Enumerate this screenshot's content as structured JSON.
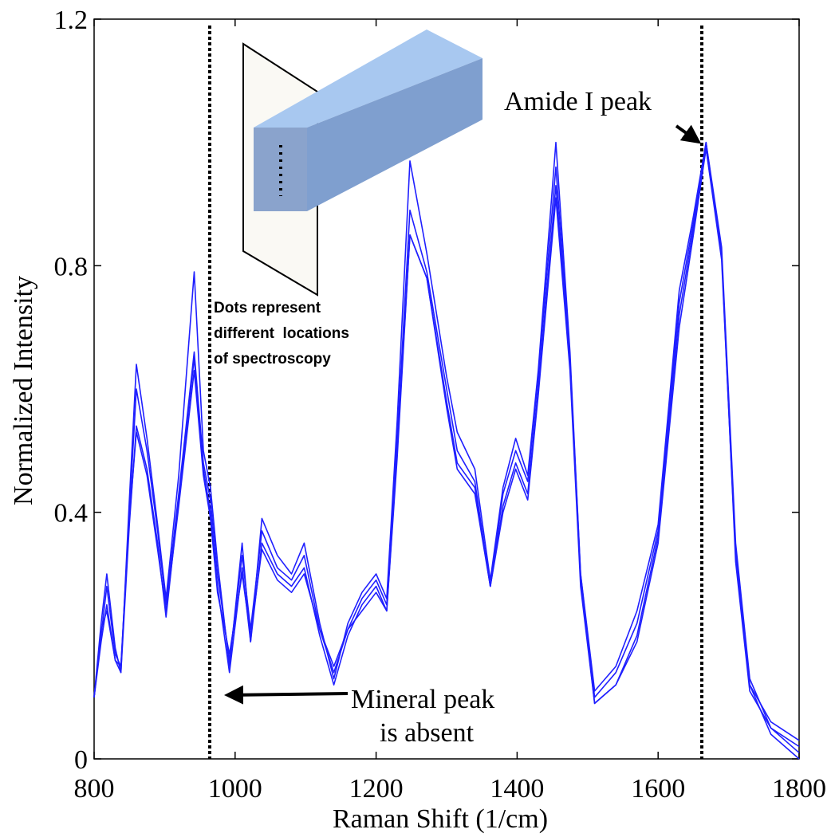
{
  "chart_data": {
    "type": "line",
    "xlabel": "Raman Shift (1/cm)",
    "ylabel": "Normalized Intensity",
    "xlim": [
      800,
      1800
    ],
    "ylim": [
      0,
      1.2
    ],
    "xticks": [
      800,
      1000,
      1200,
      1400,
      1600,
      1800
    ],
    "yticks": [
      0,
      0.4,
      0.8,
      1.2
    ],
    "vlines": [
      964,
      1662
    ],
    "annotations": [
      "Amide I peak",
      "Mineral peak",
      "is absent",
      "Dots represent",
      "different  locations",
      "of spectroscopy"
    ],
    "x": [
      800,
      810,
      818,
      830,
      838,
      850,
      860,
      875,
      890,
      902,
      920,
      942,
      955,
      965,
      975,
      992,
      1010,
      1022,
      1038,
      1060,
      1080,
      1098,
      1120,
      1140,
      1160,
      1180,
      1200,
      1215,
      1230,
      1248,
      1272,
      1300,
      1315,
      1340,
      1362,
      1380,
      1398,
      1415,
      1430,
      1455,
      1475,
      1490,
      1510,
      1540,
      1570,
      1600,
      1630,
      1650,
      1668,
      1690,
      1710,
      1730,
      1760,
      1800
    ],
    "series": [
      {
        "color": "#1f1fff",
        "values": [
          0.1,
          0.22,
          0.3,
          0.18,
          0.14,
          0.42,
          0.64,
          0.52,
          0.38,
          0.26,
          0.46,
          0.79,
          0.5,
          0.44,
          0.32,
          0.15,
          0.35,
          0.19,
          0.39,
          0.33,
          0.3,
          0.35,
          0.22,
          0.13,
          0.22,
          0.27,
          0.3,
          0.26,
          0.55,
          0.97,
          0.82,
          0.62,
          0.53,
          0.47,
          0.29,
          0.44,
          0.52,
          0.46,
          0.63,
          1.0,
          0.66,
          0.3,
          0.11,
          0.15,
          0.24,
          0.38,
          0.76,
          0.88,
          1.0,
          0.82,
          0.32,
          0.11,
          0.05,
          0.02
        ]
      },
      {
        "color": "#1f1fff",
        "values": [
          0.1,
          0.2,
          0.28,
          0.17,
          0.15,
          0.4,
          0.6,
          0.5,
          0.37,
          0.25,
          0.43,
          0.66,
          0.48,
          0.42,
          0.3,
          0.16,
          0.33,
          0.21,
          0.37,
          0.31,
          0.29,
          0.33,
          0.21,
          0.14,
          0.21,
          0.26,
          0.29,
          0.25,
          0.52,
          0.89,
          0.79,
          0.6,
          0.5,
          0.45,
          0.28,
          0.43,
          0.5,
          0.45,
          0.62,
          0.96,
          0.65,
          0.3,
          0.1,
          0.14,
          0.22,
          0.37,
          0.74,
          0.87,
          0.99,
          0.81,
          0.33,
          0.12,
          0.06,
          0.03
        ]
      },
      {
        "color": "#1f1fff",
        "values": [
          0.1,
          0.19,
          0.25,
          0.16,
          0.14,
          0.38,
          0.54,
          0.47,
          0.35,
          0.23,
          0.42,
          0.65,
          0.47,
          0.4,
          0.28,
          0.14,
          0.31,
          0.19,
          0.35,
          0.3,
          0.28,
          0.31,
          0.2,
          0.12,
          0.2,
          0.25,
          0.28,
          0.24,
          0.5,
          0.85,
          0.78,
          0.58,
          0.48,
          0.44,
          0.28,
          0.41,
          0.48,
          0.43,
          0.6,
          0.93,
          0.64,
          0.29,
          0.09,
          0.12,
          0.2,
          0.36,
          0.72,
          0.86,
          1.0,
          0.83,
          0.35,
          0.13,
          0.05,
          0.01
        ]
      },
      {
        "color": "#1f1fff",
        "values": [
          0.1,
          0.21,
          0.24,
          0.16,
          0.15,
          0.39,
          0.53,
          0.46,
          0.34,
          0.24,
          0.41,
          0.63,
          0.46,
          0.39,
          0.27,
          0.17,
          0.3,
          0.2,
          0.34,
          0.29,
          0.27,
          0.3,
          0.21,
          0.15,
          0.21,
          0.24,
          0.27,
          0.24,
          0.49,
          0.85,
          0.78,
          0.57,
          0.47,
          0.43,
          0.28,
          0.4,
          0.47,
          0.42,
          0.59,
          0.91,
          0.63,
          0.28,
          0.09,
          0.12,
          0.19,
          0.35,
          0.7,
          0.85,
          0.99,
          0.82,
          0.34,
          0.12,
          0.04,
          0.0
        ]
      }
    ]
  }
}
